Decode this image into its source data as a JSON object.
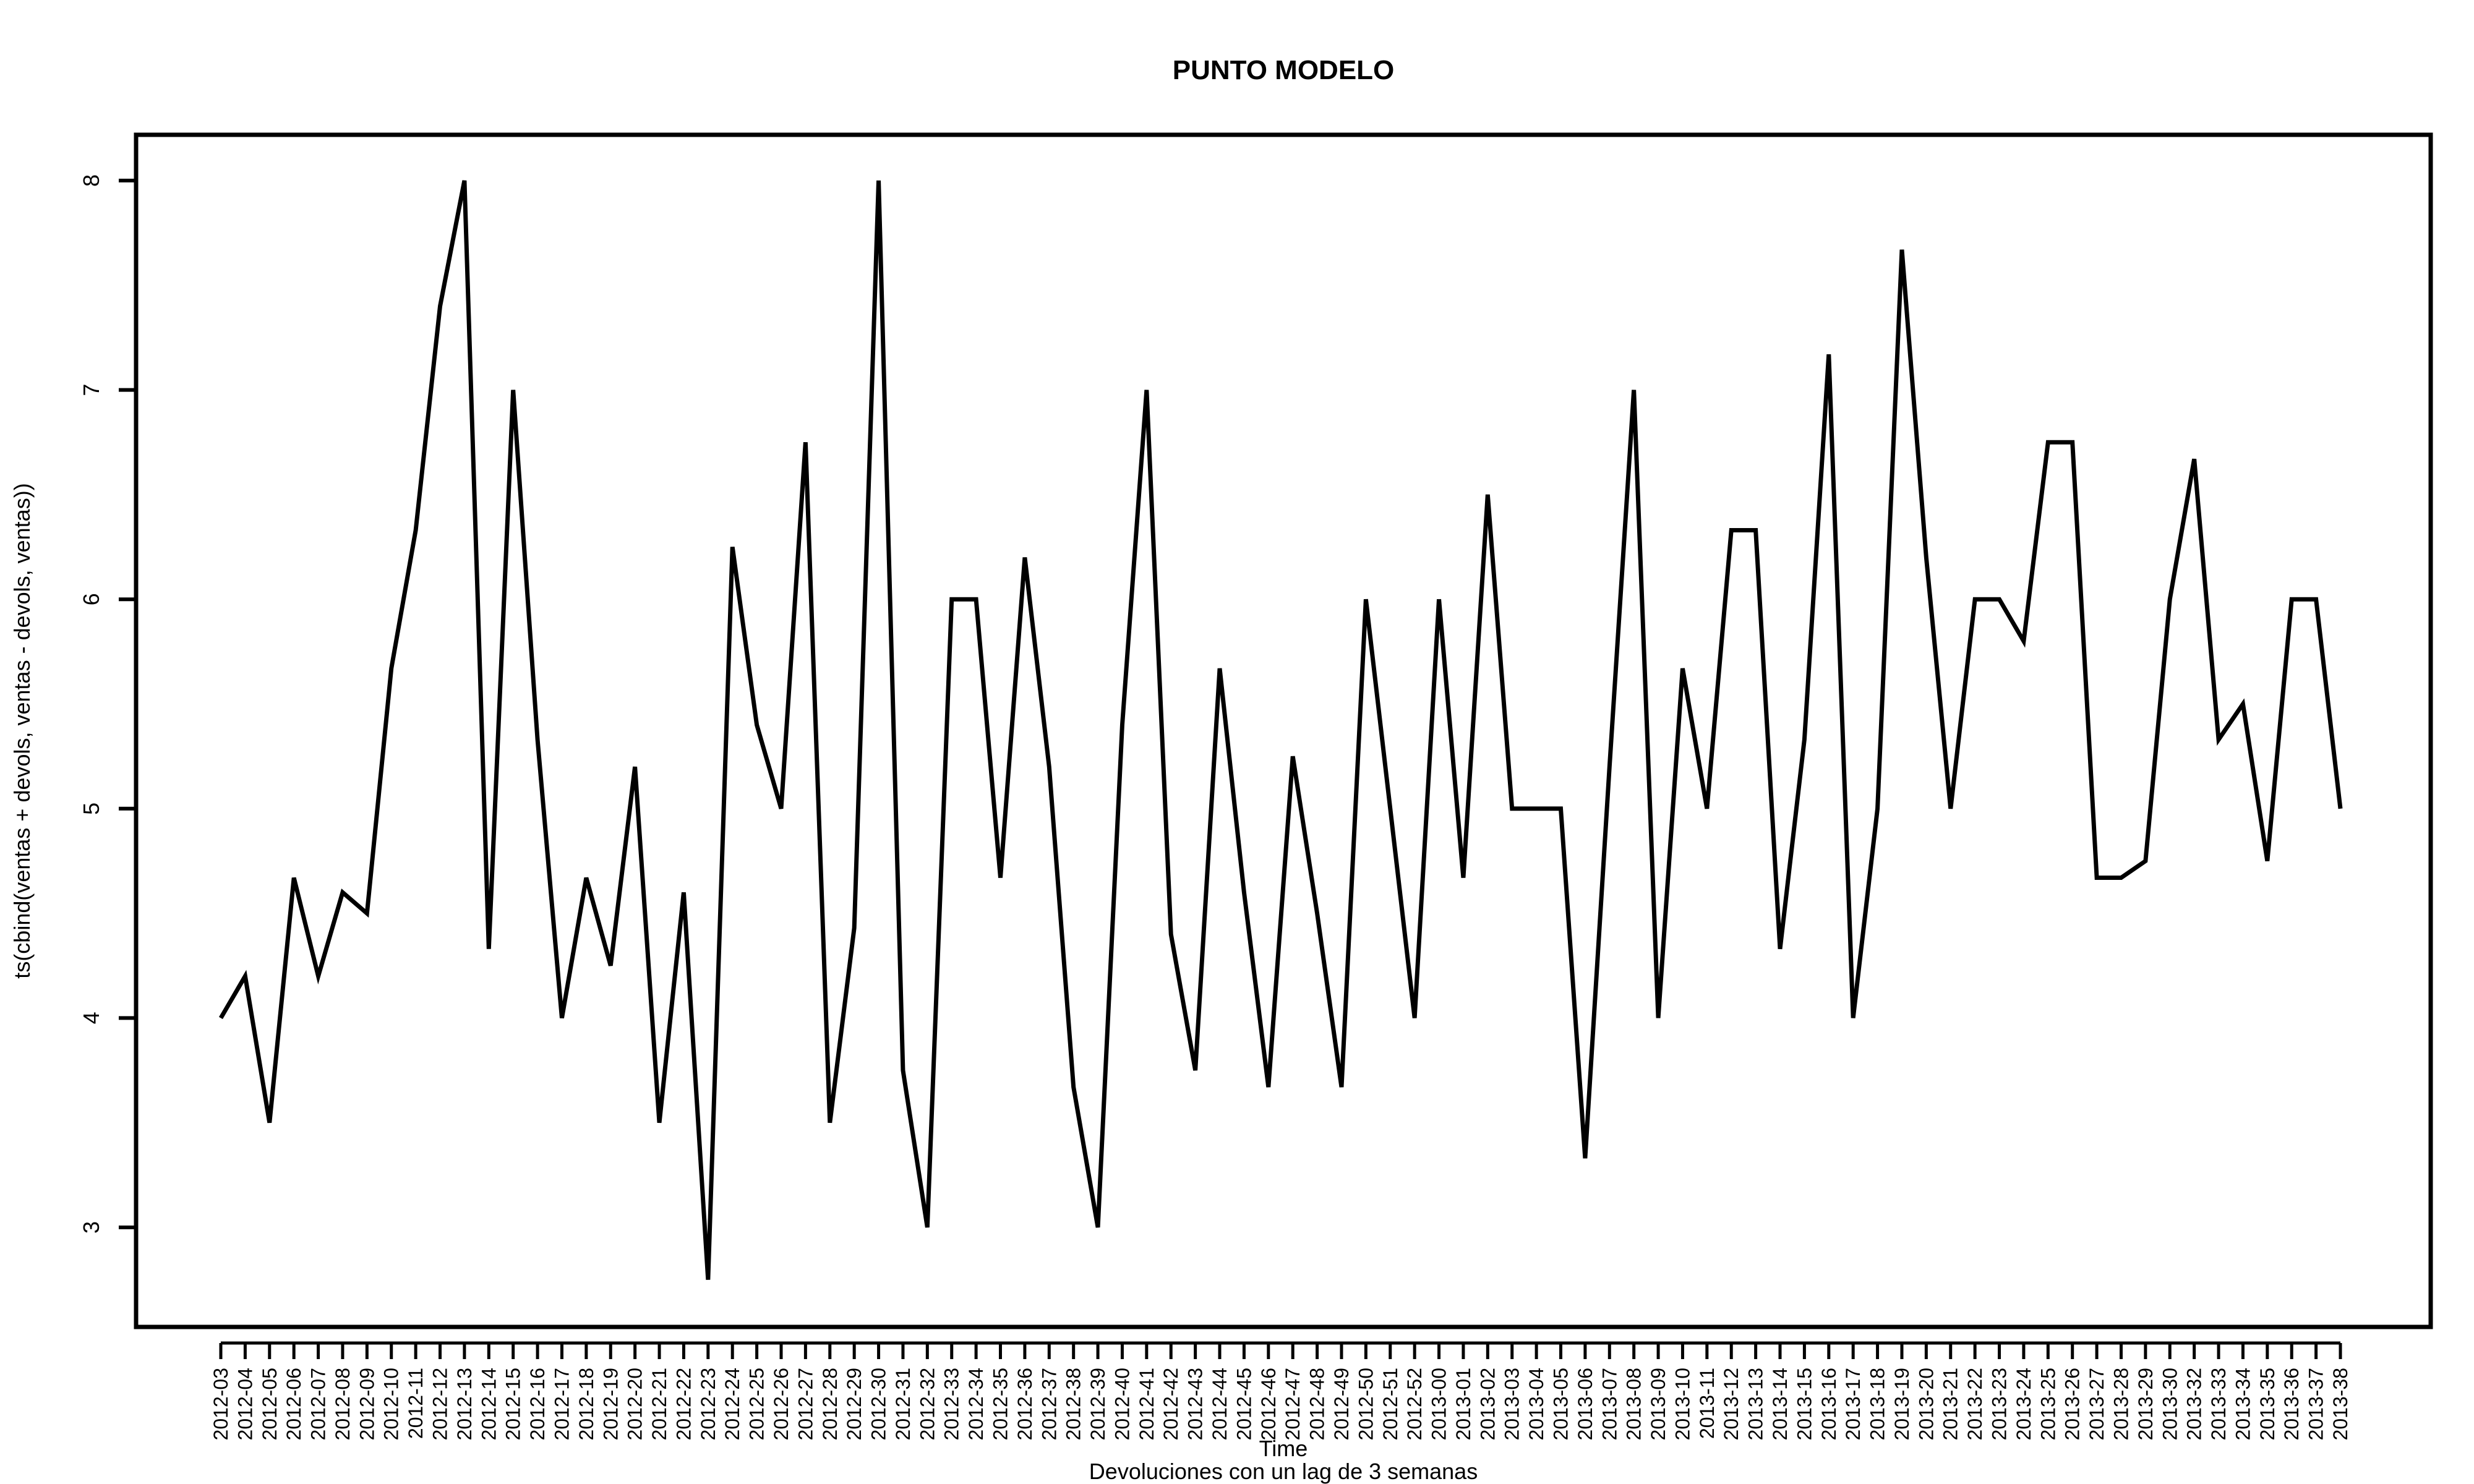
{
  "chart_data": {
    "type": "line",
    "title": "PUNTO MODELO",
    "xlabel": "Time",
    "ylabel": "ts(cbind(ventas + devols, ventas - devols, ventas))",
    "caption": "Devoluciones con un lag de 3 semanas",
    "ylim": [
      2.55,
      8.05
    ],
    "yticks": [
      3,
      4,
      5,
      6,
      7,
      8
    ],
    "grid": false,
    "legend": "none",
    "line_color": "#000000",
    "x": [
      "2012-03",
      "2012-04",
      "2012-05",
      "2012-06",
      "2012-07",
      "2012-08",
      "2012-09",
      "2012-10",
      "2012-11",
      "2012-12",
      "2012-13",
      "2012-14",
      "2012-15",
      "2012-16",
      "2012-17",
      "2012-18",
      "2012-19",
      "2012-20",
      "2012-21",
      "2012-22",
      "2012-23",
      "2012-24",
      "2012-25",
      "2012-26",
      "2012-27",
      "2012-28",
      "2012-29",
      "2012-30",
      "2012-31",
      "2012-32",
      "2012-33",
      "2012-34",
      "2012-35",
      "2012-36",
      "2012-37",
      "2012-38",
      "2012-39",
      "2012-40",
      "2012-41",
      "2012-42",
      "2012-43",
      "2012-44",
      "2012-45",
      "2012-46",
      "2012-47",
      "2012-48",
      "2012-49",
      "2012-50",
      "2012-51",
      "2012-52",
      "2013-00",
      "2013-01",
      "2013-02",
      "2013-03",
      "2013-04",
      "2013-05",
      "2013-06",
      "2013-07",
      "2013-08",
      "2013-09",
      "2013-10",
      "2013-11",
      "2013-12",
      "2013-13",
      "2013-14",
      "2013-15",
      "2013-16",
      "2013-17",
      "2013-18",
      "2013-19",
      "2013-20",
      "2013-21",
      "2013-22",
      "2013-23",
      "2013-24",
      "2013-25",
      "2013-26",
      "2013-27",
      "2013-28",
      "2013-29",
      "2013-30",
      "2013-32",
      "2013-33",
      "2013-34",
      "2013-35",
      "2013-36",
      "2013-37",
      "2013-38"
    ],
    "values": [
      4,
      4.2,
      3.5,
      4.67,
      4.2,
      4.6,
      4.5,
      5.67,
      6.33,
      7.4,
      8,
      4.33,
      7,
      5.33,
      4,
      4.67,
      4.25,
      5.2,
      3.5,
      4.6,
      2.75,
      6.25,
      5.4,
      5,
      6.75,
      3.5,
      4.43,
      8,
      3.75,
      3,
      6,
      6,
      4.67,
      6.2,
      5.2,
      3.67,
      3,
      5.4,
      7,
      4.4,
      3.75,
      5.67,
      4.6,
      3.67,
      5.25,
      4.5,
      3.67,
      6,
      5,
      4,
      6,
      4.67,
      6.5,
      5,
      5,
      5,
      3.33,
      5.2,
      7,
      4,
      5.67,
      5,
      6.33,
      6.33,
      4.33,
      5.33,
      7.17,
      4,
      5,
      7.67,
      6.2,
      5,
      6,
      6,
      5.8,
      6.75,
      6.75,
      4.67,
      4.67,
      4.75,
      6,
      6.67,
      5.33,
      5.5,
      4.75,
      6,
      6,
      5
    ]
  }
}
